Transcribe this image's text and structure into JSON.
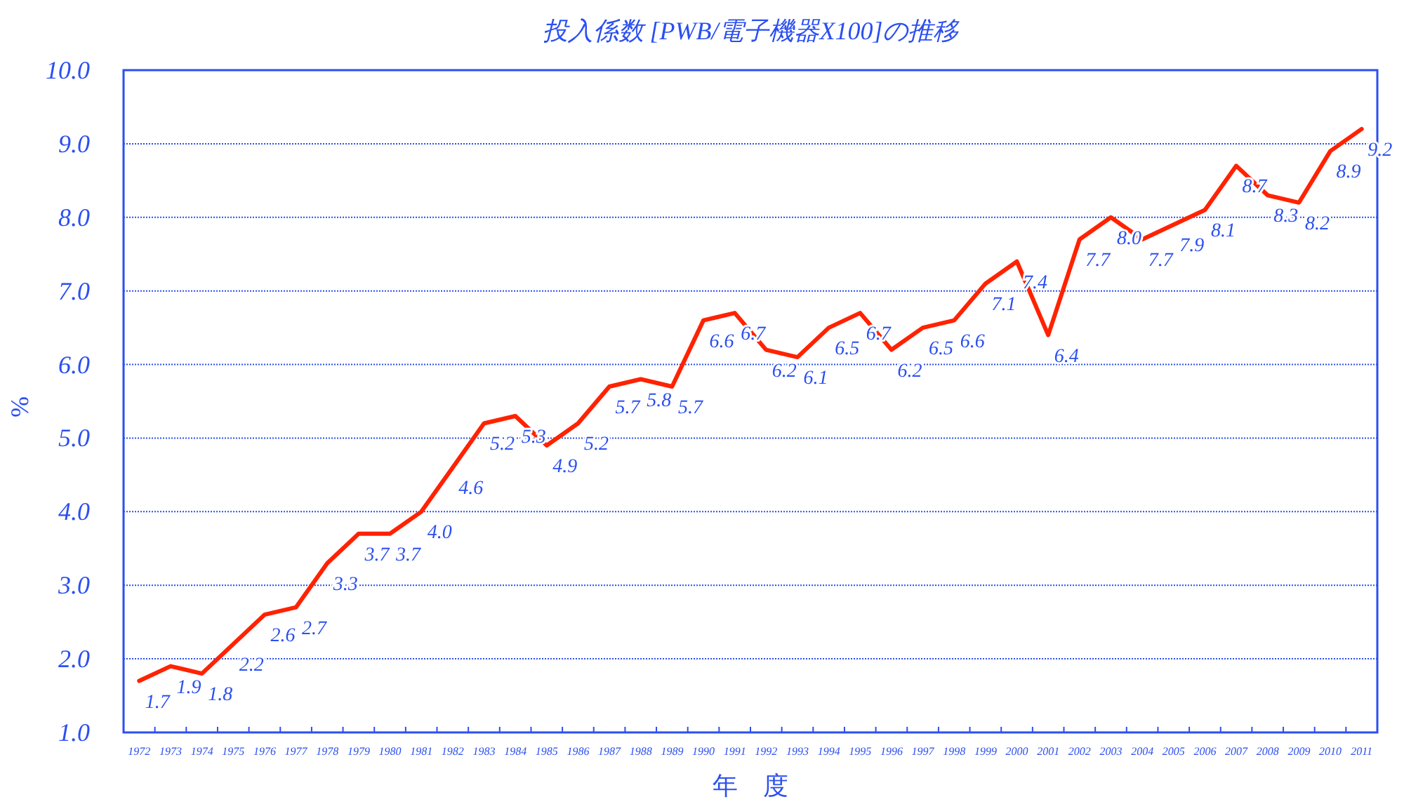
{
  "chart_data": {
    "type": "line",
    "title": "投入係数 [PWB/電子機器X100]の推移",
    "xlabel": "年　度",
    "ylabel": "%",
    "categories": [
      "1972",
      "1973",
      "1974",
      "1975",
      "1976",
      "1977",
      "1978",
      "1979",
      "1980",
      "1981",
      "1982",
      "1983",
      "1984",
      "1985",
      "1986",
      "1987",
      "1988",
      "1989",
      "1990",
      "1991",
      "1992",
      "1993",
      "1994",
      "1995",
      "1996",
      "1997",
      "1998",
      "1999",
      "2000",
      "2001",
      "2002",
      "2003",
      "2004",
      "2005",
      "2006",
      "2007",
      "2008",
      "2009",
      "2010",
      "2011"
    ],
    "series": [
      {
        "color": "#ff2200",
        "values": [
          1.7,
          1.9,
          1.8,
          2.2,
          2.6,
          2.7,
          3.3,
          3.7,
          3.7,
          4.0,
          4.6,
          5.2,
          5.3,
          4.9,
          5.2,
          5.7,
          5.8,
          5.7,
          6.6,
          6.7,
          6.2,
          6.1,
          6.5,
          6.7,
          6.2,
          6.5,
          6.6,
          7.1,
          7.4,
          6.4,
          7.7,
          8.0,
          7.7,
          7.9,
          8.1,
          8.7,
          8.3,
          8.2,
          8.9,
          9.2
        ],
        "value_labels": [
          "1.7",
          "1.9",
          "1.8",
          "2.2",
          "2.6",
          "2.7",
          "3.3",
          "3.7",
          "3.7",
          "4.0",
          "4.6",
          "5.2",
          "5.3",
          "4.9",
          "5.2",
          "5.7",
          "5.8",
          "5.7",
          "6.6",
          "6.7",
          "6.2",
          "6.1",
          "6.5",
          "6.7",
          "6.2",
          "6.5",
          "6.6",
          "7.1",
          "7.4",
          "6.4",
          "7.7",
          "8.0",
          "7.7",
          "7.9",
          "8.1",
          "8.7",
          "8.3",
          "8.2",
          "8.9",
          "9.2"
        ]
      }
    ],
    "ylim": [
      1.0,
      10.0
    ],
    "yticks": [
      {
        "value": 1.0,
        "label": "1.0"
      },
      {
        "value": 2.0,
        "label": "2.0"
      },
      {
        "value": 3.0,
        "label": "3.0"
      },
      {
        "value": 4.0,
        "label": "4.0"
      },
      {
        "value": 5.0,
        "label": "5.0"
      },
      {
        "value": 6.0,
        "label": "6.0"
      },
      {
        "value": 7.0,
        "label": "7.0"
      },
      {
        "value": 8.0,
        "label": "8.0"
      },
      {
        "value": 9.0,
        "label": "9.0"
      },
      {
        "value": 10.0,
        "label": "10.0"
      }
    ],
    "grid": "y"
  }
}
